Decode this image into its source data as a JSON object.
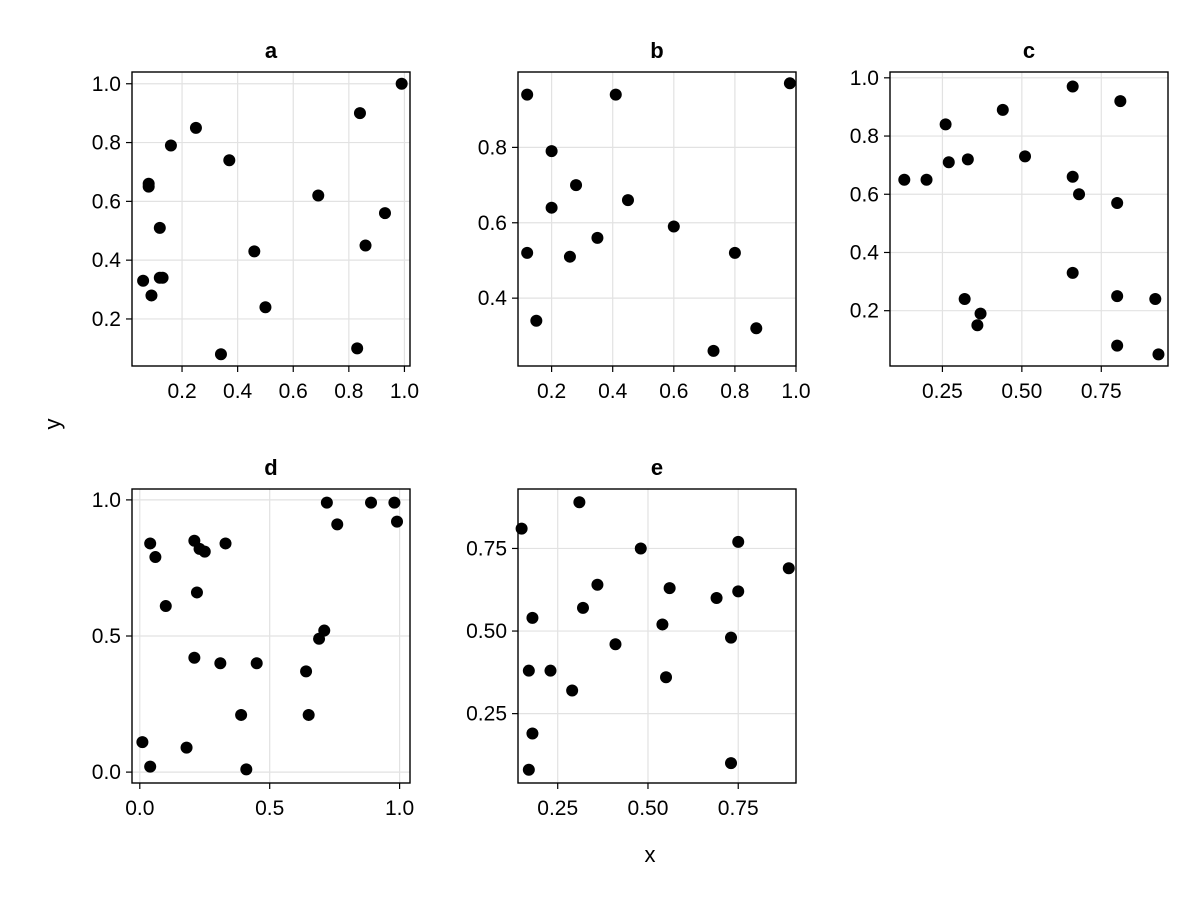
{
  "figure": {
    "xlabel": "x",
    "ylabel": "y"
  },
  "chart_data": [
    {
      "type": "scatter",
      "title": "a",
      "xlim": [
        0.02,
        1.02
      ],
      "ylim": [
        0.04,
        1.04
      ],
      "xticks": [
        0.2,
        0.4,
        0.6,
        0.8,
        1.0
      ],
      "xtick_labels": [
        "0.2",
        "0.4",
        "0.6",
        "0.8",
        "1.0"
      ],
      "yticks": [
        0.2,
        0.4,
        0.6,
        0.8,
        1.0
      ],
      "ytick_labels": [
        "0.2",
        "0.4",
        "0.6",
        "0.8",
        "1.0"
      ],
      "grid": true,
      "x": [
        0.06,
        0.08,
        0.08,
        0.09,
        0.12,
        0.12,
        0.13,
        0.16,
        0.25,
        0.34,
        0.37,
        0.46,
        0.5,
        0.69,
        0.83,
        0.84,
        0.86,
        0.93,
        0.99
      ],
      "y": [
        0.33,
        0.66,
        0.65,
        0.28,
        0.51,
        0.34,
        0.34,
        0.79,
        0.85,
        0.08,
        0.74,
        0.43,
        0.24,
        0.62,
        0.1,
        0.9,
        0.45,
        0.56,
        1.0
      ]
    },
    {
      "type": "scatter",
      "title": "b",
      "xlim": [
        0.09,
        1.0
      ],
      "ylim": [
        0.22,
        1.0
      ],
      "xticks": [
        0.2,
        0.4,
        0.6,
        0.8,
        1.0
      ],
      "xtick_labels": [
        "0.2",
        "0.4",
        "0.6",
        "0.8",
        "1.0"
      ],
      "yticks": [
        0.4,
        0.6,
        0.8
      ],
      "ytick_labels": [
        "0.4",
        "0.6",
        "0.8"
      ],
      "grid": true,
      "x": [
        0.12,
        0.12,
        0.15,
        0.2,
        0.2,
        0.26,
        0.28,
        0.35,
        0.41,
        0.45,
        0.6,
        0.73,
        0.8,
        0.87,
        0.98
      ],
      "y": [
        0.94,
        0.52,
        0.34,
        0.79,
        0.64,
        0.51,
        0.7,
        0.56,
        0.94,
        0.66,
        0.59,
        0.26,
        0.52,
        0.32,
        0.97
      ]
    },
    {
      "type": "scatter",
      "title": "c",
      "xlim": [
        0.085,
        0.96
      ],
      "ylim": [
        0.01,
        1.02
      ],
      "xticks": [
        0.25,
        0.5,
        0.75
      ],
      "xtick_labels": [
        "0.25",
        "0.50",
        "0.75"
      ],
      "yticks": [
        0.2,
        0.4,
        0.6,
        0.8,
        1.0
      ],
      "ytick_labels": [
        "0.2",
        "0.4",
        "0.6",
        "0.8",
        "1.0"
      ],
      "grid": true,
      "x": [
        0.13,
        0.2,
        0.26,
        0.27,
        0.32,
        0.33,
        0.36,
        0.37,
        0.44,
        0.51,
        0.66,
        0.66,
        0.66,
        0.68,
        0.8,
        0.8,
        0.8,
        0.81,
        0.92,
        0.93
      ],
      "y": [
        0.65,
        0.65,
        0.84,
        0.71,
        0.24,
        0.72,
        0.15,
        0.19,
        0.89,
        0.73,
        0.97,
        0.66,
        0.33,
        0.6,
        0.57,
        0.08,
        0.25,
        0.92,
        0.24,
        0.05
      ]
    },
    {
      "type": "scatter",
      "title": "d",
      "xlim": [
        -0.03,
        1.04
      ],
      "ylim": [
        -0.04,
        1.04
      ],
      "xticks": [
        0.0,
        0.5,
        1.0
      ],
      "xtick_labels": [
        "0.0",
        "0.5",
        "1.0"
      ],
      "yticks": [
        0.0,
        0.5,
        1.0
      ],
      "ytick_labels": [
        "0.0",
        "0.5",
        "1.0"
      ],
      "grid": true,
      "x": [
        0.01,
        0.04,
        0.04,
        0.06,
        0.1,
        0.18,
        0.21,
        0.21,
        0.22,
        0.23,
        0.25,
        0.31,
        0.33,
        0.39,
        0.41,
        0.45,
        0.64,
        0.65,
        0.69,
        0.71,
        0.72,
        0.76,
        0.89,
        0.98,
        0.99
      ],
      "y": [
        0.11,
        0.84,
        0.02,
        0.79,
        0.61,
        0.09,
        0.85,
        0.42,
        0.66,
        0.82,
        0.81,
        0.4,
        0.84,
        0.21,
        0.01,
        0.4,
        0.37,
        0.21,
        0.49,
        0.52,
        0.99,
        0.91,
        0.99,
        0.99,
        0.92
      ]
    },
    {
      "type": "scatter",
      "title": "e",
      "xlim": [
        0.14,
        0.91
      ],
      "ylim": [
        0.04,
        0.93
      ],
      "xticks": [
        0.25,
        0.5,
        0.75
      ],
      "xtick_labels": [
        "0.25",
        "0.50",
        "0.75"
      ],
      "yticks": [
        0.25,
        0.5,
        0.75
      ],
      "ytick_labels": [
        "0.25",
        "0.50",
        "0.75"
      ],
      "grid": true,
      "x": [
        0.15,
        0.17,
        0.17,
        0.18,
        0.18,
        0.23,
        0.29,
        0.31,
        0.32,
        0.36,
        0.41,
        0.48,
        0.54,
        0.55,
        0.56,
        0.69,
        0.73,
        0.73,
        0.75,
        0.75,
        0.89
      ],
      "y": [
        0.81,
        0.38,
        0.08,
        0.54,
        0.19,
        0.38,
        0.32,
        0.89,
        0.57,
        0.64,
        0.46,
        0.75,
        0.52,
        0.36,
        0.63,
        0.6,
        0.48,
        0.1,
        0.77,
        0.62,
        0.69
      ]
    }
  ]
}
